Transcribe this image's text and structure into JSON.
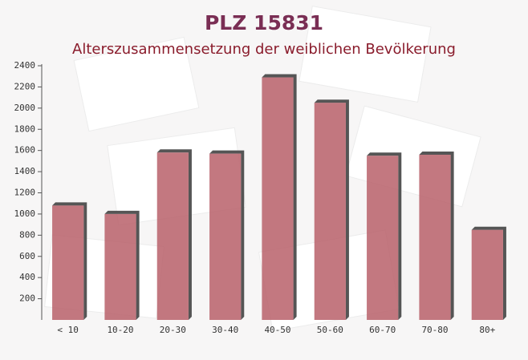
{
  "chart_data": {
    "type": "bar",
    "title": "PLZ 15831",
    "subtitle": "Alterszusammensetzung der weiblichen Bevölkerung",
    "categories": [
      "< 10",
      "10-20",
      "20-30",
      "30-40",
      "40-50",
      "50-60",
      "60-70",
      "70-80",
      "80+"
    ],
    "values": [
      1080,
      1000,
      1580,
      1570,
      2290,
      2050,
      1550,
      1560,
      850
    ],
    "color": "#b9606a",
    "ylim": [
      0,
      2400
    ],
    "yticks": [
      200,
      400,
      600,
      800,
      1000,
      1200,
      1400,
      1600,
      1800,
      2000,
      2200,
      2400
    ],
    "grid": false
  }
}
